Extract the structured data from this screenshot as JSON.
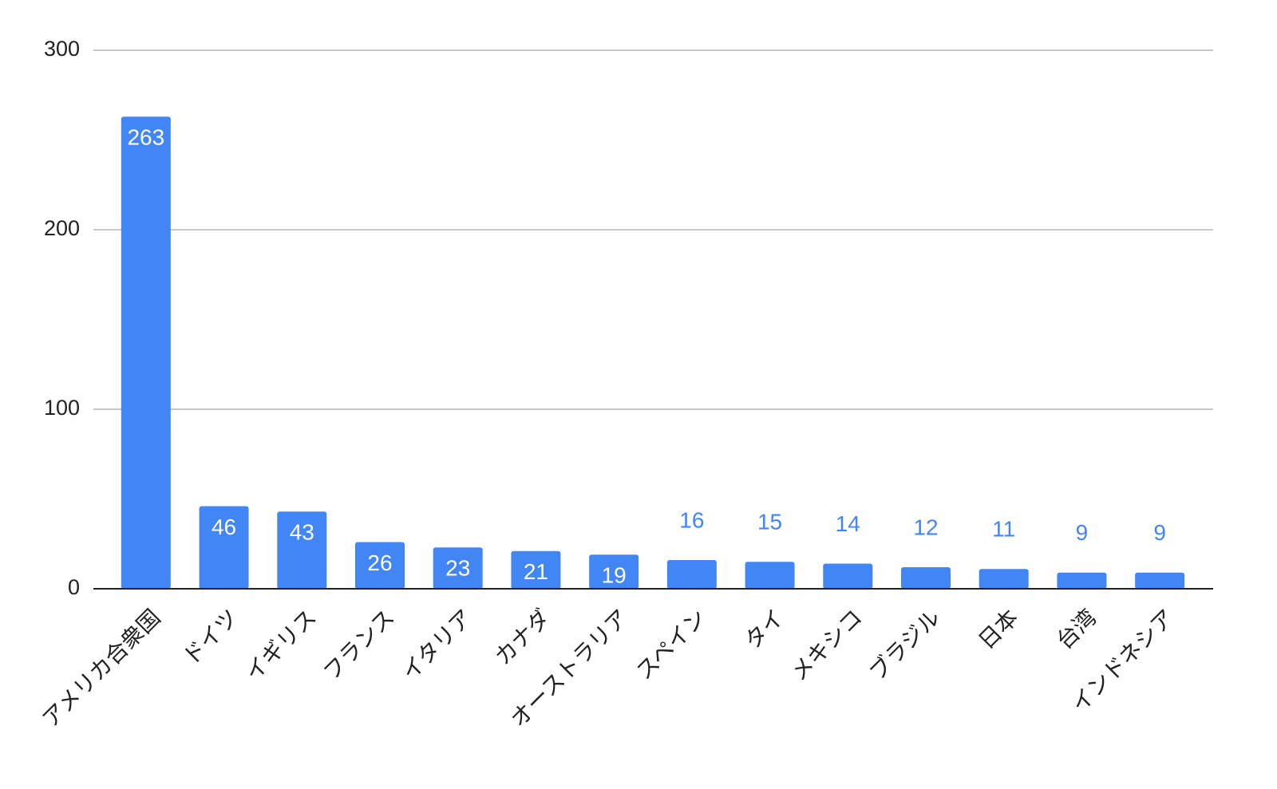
{
  "chart_data": {
    "type": "bar",
    "categories": [
      "アメリカ合衆国",
      "ドイツ",
      "イギリス",
      "フランス",
      "イタリア",
      "カナダ",
      "オーストラリア",
      "スペイン",
      "タイ",
      "メキシコ",
      "ブラジル",
      "日本",
      "台湾",
      "インドネシア"
    ],
    "values": [
      263,
      46,
      43,
      26,
      23,
      21,
      19,
      16,
      15,
      14,
      12,
      11,
      9,
      9
    ],
    "color": "#4285f4",
    "ylim": [
      0,
      300
    ],
    "yticks": [
      0,
      100,
      200,
      300
    ],
    "grid": true
  }
}
